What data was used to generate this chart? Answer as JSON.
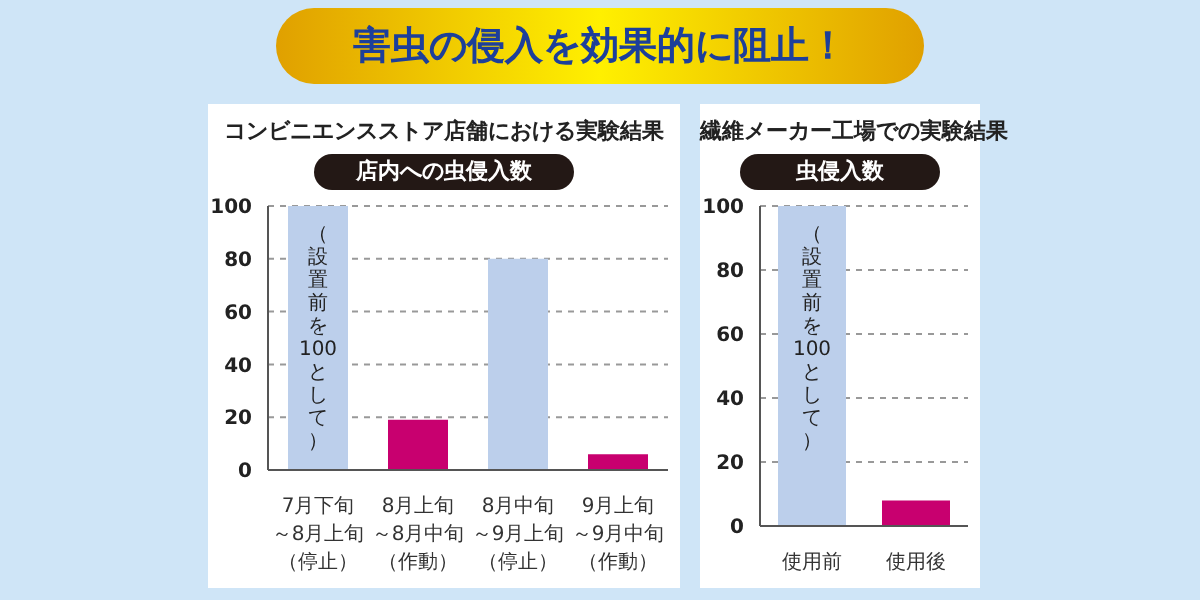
{
  "chart_data": [
    {
      "type": "bar",
      "title": "コンビニエンスストア店舗における実験結果",
      "ylabel": "店内への虫侵入数",
      "categories": [
        "7月下旬～8月上旬（停止）",
        "8月上旬～8月中旬（作動）",
        "8月中旬～9月上旬（停止）",
        "9月上旬～9月中旬（作動）"
      ],
      "values": [
        100,
        19,
        80,
        6
      ],
      "colors": [
        "#bccfeb",
        "#c8006f",
        "#bccfeb",
        "#c8006f"
      ],
      "ylim": [
        0,
        100
      ],
      "yticks": [
        0,
        20,
        40,
        60,
        80,
        100
      ],
      "grid": "y",
      "annotations": [
        "害虫の侵入を効果的に阻止！",
        "（設置前を100として）"
      ]
    },
    {
      "type": "bar",
      "title": "繊維メーカー工場での実験結果",
      "ylabel": "虫侵入数",
      "categories": [
        "使用前",
        "使用後"
      ],
      "values": [
        100,
        8
      ],
      "colors": [
        "#bccfeb",
        "#c8006f"
      ],
      "ylim": [
        0,
        100
      ],
      "yticks": [
        0,
        20,
        40,
        60,
        80,
        100
      ],
      "grid": "y",
      "annotations": [
        "（設置前を100として）"
      ]
    }
  ]
}
